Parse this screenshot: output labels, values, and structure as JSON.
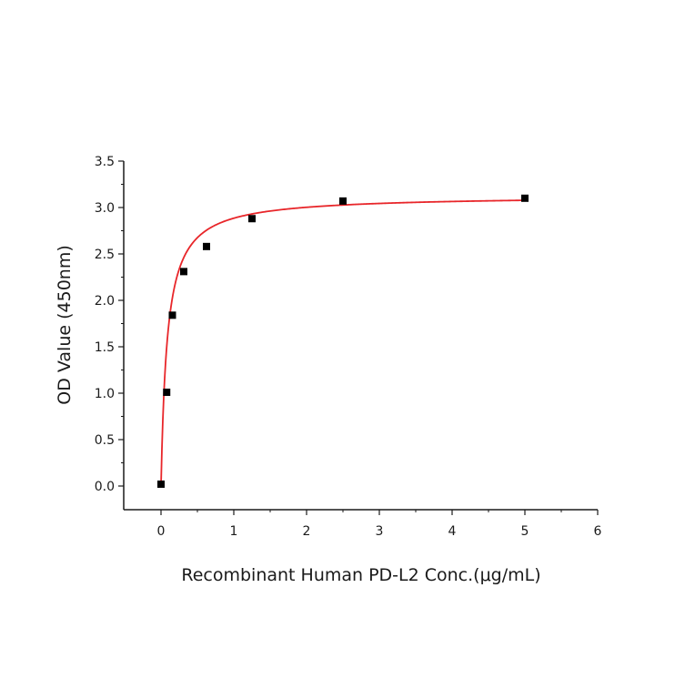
{
  "chart_data": {
    "type": "scatter",
    "title": "",
    "xlabel": "Recombinant Human PD-L2 Conc.(μg/mL)",
    "ylabel": "OD Value (450nm)",
    "xlim": [
      -0.5,
      6
    ],
    "ylim": [
      -0.25,
      3.5
    ],
    "x_ticks": [
      0,
      1,
      2,
      3,
      4,
      5,
      6
    ],
    "x_tick_labels": [
      "0",
      "1",
      "2",
      "3",
      "4",
      "5",
      "6"
    ],
    "y_ticks": [
      0.0,
      0.5,
      1.0,
      1.5,
      2.0,
      2.5,
      3.0,
      3.5
    ],
    "y_tick_labels": [
      "0.0",
      "0.5",
      "1.0",
      "1.5",
      "2.0",
      "2.5",
      "3.0",
      "3.5"
    ],
    "grid": false,
    "legend": null,
    "series": [
      {
        "name": "Measured OD",
        "marker": "square",
        "color": "#000000",
        "x": [
          0,
          0.078,
          0.156,
          0.3125,
          0.625,
          1.25,
          2.5,
          5
        ],
        "y": [
          0.02,
          1.01,
          1.84,
          2.31,
          2.58,
          2.88,
          3.07,
          3.1
        ]
      },
      {
        "name": "Fitted curve",
        "type": "line",
        "color": "#e8262a",
        "model": "hyperbolic saturation (4PL-like)",
        "x": [
          0,
          0.04,
          0.08,
          0.12,
          0.16,
          0.2,
          0.3,
          0.4,
          0.5,
          0.625,
          0.8,
          1,
          1.25,
          1.5,
          2,
          2.5,
          3,
          3.5,
          4,
          4.5,
          5
        ],
        "y": [
          0.0,
          0.62,
          1.1,
          1.45,
          1.72,
          1.93,
          2.28,
          2.48,
          2.61,
          2.72,
          2.81,
          2.87,
          2.92,
          2.95,
          2.99,
          3.02,
          3.04,
          3.05,
          3.06,
          3.07,
          3.08
        ]
      }
    ]
  },
  "colors": {
    "axis": "#1a1a1a",
    "curve": "#e8262a",
    "marker": "#000000",
    "background": "#ffffff"
  }
}
